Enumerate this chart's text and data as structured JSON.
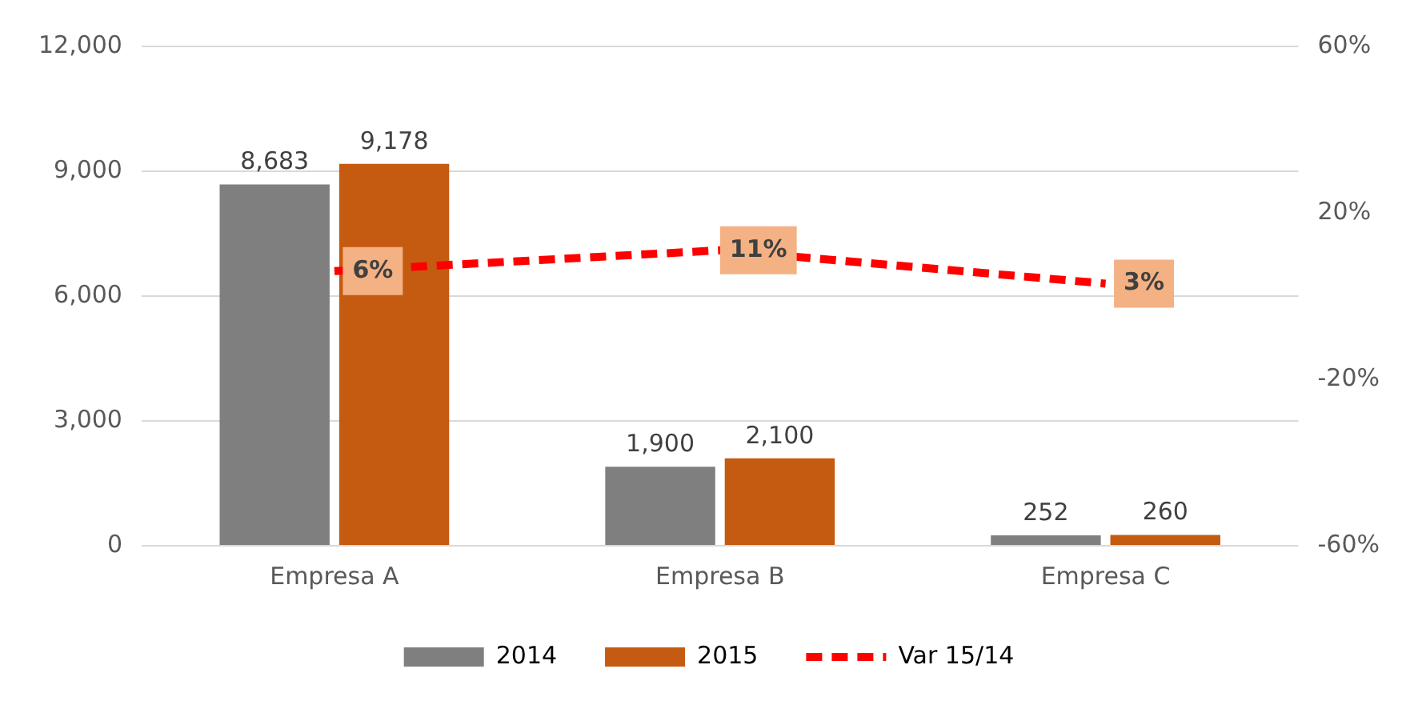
{
  "chart_data": {
    "type": "bar",
    "categories": [
      "Empresa A",
      "Empresa B",
      "Empresa C"
    ],
    "series": [
      {
        "name": "2014",
        "color": "#7f7f7f",
        "values": [
          8683,
          1900,
          252
        ],
        "value_labels": [
          "8,683",
          "1,900",
          "252"
        ]
      },
      {
        "name": "2015",
        "color": "#c55a11",
        "values": [
          9178,
          2100,
          260
        ],
        "value_labels": [
          "9,178",
          "2,100",
          "260"
        ]
      },
      {
        "name": "Var 15/14",
        "type": "line",
        "axis": "y2",
        "color": "#ff0000",
        "line_style": "dashed",
        "values": [
          6,
          11,
          3
        ],
        "value_labels": [
          "6%",
          "11%",
          "3%"
        ]
      }
    ],
    "ylim": [
      0,
      12000
    ],
    "yticks": [
      {
        "value": 0,
        "label": "0"
      },
      {
        "value": 3000,
        "label": "3,000"
      },
      {
        "value": 6000,
        "label": "6,000"
      },
      {
        "value": 9000,
        "label": "9,000"
      },
      {
        "value": 12000,
        "label": "12,000"
      }
    ],
    "y2lim": [
      -60,
      60
    ],
    "y2ticks": [
      {
        "value": -60,
        "label": "-60%"
      },
      {
        "value": -20,
        "label": "-20%"
      },
      {
        "value": 20,
        "label": "20%"
      },
      {
        "value": 60,
        "label": "60%"
      }
    ],
    "grid": "y",
    "legend": "bottom"
  }
}
